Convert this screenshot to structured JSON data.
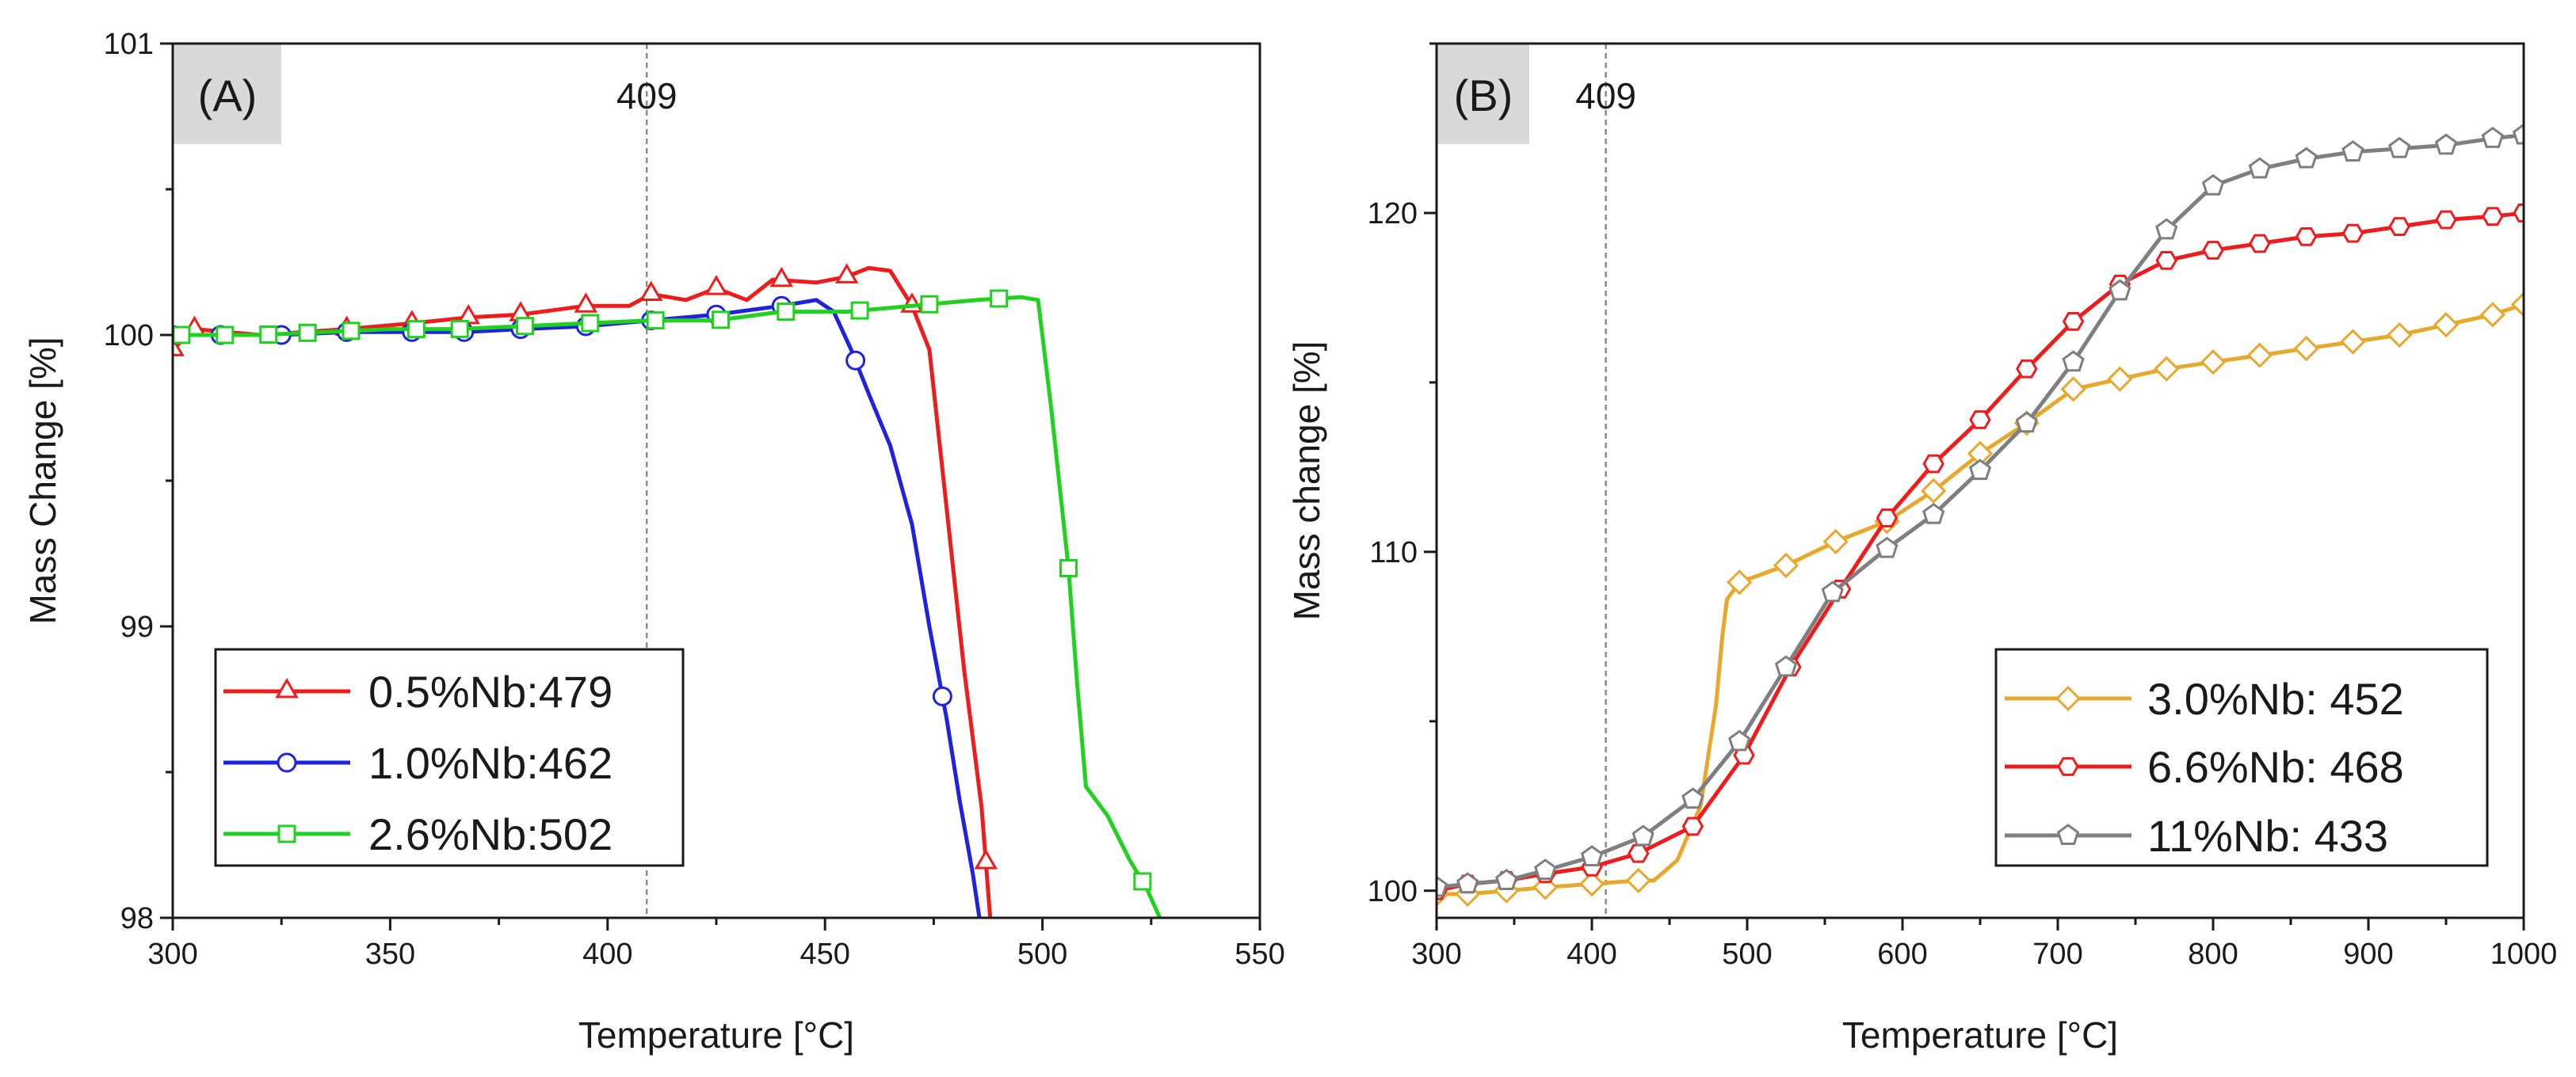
{
  "chart_data": [
    {
      "type": "line",
      "panel_label": "(A)",
      "xlabel": "Temperature [°C]",
      "ylabel": "Mass Change [%]",
      "xlim": [
        300,
        550
      ],
      "ylim": [
        98,
        101
      ],
      "xticks": [
        300,
        350,
        400,
        450,
        500,
        550
      ],
      "yticks": [
        98,
        99,
        100,
        101
      ],
      "grid": false,
      "legend_position": "bottom-left",
      "vline": {
        "x": 409,
        "label": "409"
      },
      "series": [
        {
          "name": "0.5%Nb:479",
          "color": "#ee1c1c",
          "marker": "triangle",
          "points": [
            [
              300,
              99.95
            ],
            [
              305,
              100.02
            ],
            [
              320,
              100.0
            ],
            [
              340,
              100.02
            ],
            [
              355,
              100.04
            ],
            [
              368,
              100.06
            ],
            [
              380,
              100.07
            ],
            [
              395,
              100.1
            ],
            [
              405,
              100.1
            ],
            [
              410,
              100.14
            ],
            [
              418,
              100.12
            ],
            [
              425,
              100.16
            ],
            [
              432,
              100.12
            ],
            [
              438,
              100.19
            ],
            [
              448,
              100.18
            ],
            [
              455,
              100.2
            ],
            [
              460,
              100.23
            ],
            [
              465,
              100.22
            ],
            [
              470,
              100.1
            ],
            [
              474,
              99.95
            ],
            [
              478,
              99.4
            ],
            [
              482,
              98.85
            ],
            [
              486,
              98.38
            ],
            [
              488,
              98.0
            ]
          ],
          "markers_x": [
            300,
            305,
            340,
            355,
            368,
            380,
            395,
            410,
            425,
            440,
            455,
            470,
            487
          ]
        },
        {
          "name": "1.0%Nb:462",
          "color": "#1f22e0",
          "marker": "circle",
          "points": [
            [
              300,
              100.0
            ],
            [
              311,
              100.0
            ],
            [
              325,
              100.0
            ],
            [
              340,
              100.01
            ],
            [
              355,
              100.01
            ],
            [
              367,
              100.01
            ],
            [
              380,
              100.02
            ],
            [
              395,
              100.03
            ],
            [
              410,
              100.05
            ],
            [
              425,
              100.07
            ],
            [
              440,
              100.1
            ],
            [
              448,
              100.12
            ],
            [
              452,
              100.08
            ],
            [
              456,
              99.95
            ],
            [
              460,
              99.8
            ],
            [
              465,
              99.62
            ],
            [
              470,
              99.35
            ],
            [
              474,
              99.0
            ],
            [
              478,
              98.68
            ],
            [
              481,
              98.4
            ],
            [
              484,
              98.15
            ],
            [
              485.5,
              98.0
            ]
          ],
          "markers_x": [
            300,
            311,
            325,
            340,
            355,
            367,
            380,
            395,
            410,
            425,
            440,
            457,
            477
          ]
        },
        {
          "name": "2.6%Nb:502",
          "color": "#1ed21e",
          "marker": "square",
          "points": [
            [
              300,
              100.0
            ],
            [
              310,
              100.0
            ],
            [
              320,
              100.0
            ],
            [
              335,
              100.01
            ],
            [
              350,
              100.02
            ],
            [
              365,
              100.02
            ],
            [
              380,
              100.03
            ],
            [
              395,
              100.04
            ],
            [
              410,
              100.05
            ],
            [
              425,
              100.05
            ],
            [
              440,
              100.08
            ],
            [
              455,
              100.08
            ],
            [
              470,
              100.1
            ],
            [
              485,
              100.12
            ],
            [
              495,
              100.13
            ],
            [
              499,
              100.12
            ],
            [
              502,
              99.75
            ],
            [
              506,
              99.2
            ],
            [
              508,
              98.8
            ],
            [
              510,
              98.45
            ],
            [
              515,
              98.35
            ],
            [
              520,
              98.2
            ],
            [
              524,
              98.1
            ],
            [
              527,
              98.0
            ]
          ],
          "markers_x": [
            302,
            312,
            322,
            331,
            341,
            356,
            366,
            381,
            396,
            411,
            426,
            441,
            458,
            474,
            490,
            506,
            523
          ]
        }
      ]
    },
    {
      "type": "line",
      "panel_label": "(B)",
      "xlabel": "Temperature [°C]",
      "ylabel": "Mass change [%]",
      "xlim": [
        300,
        1000
      ],
      "ylim": [
        99.2,
        125
      ],
      "xticks": [
        300,
        400,
        500,
        600,
        700,
        800,
        900,
        1000
      ],
      "yticks": [
        100,
        110,
        120
      ],
      "grid": false,
      "legend_position": "bottom-right",
      "vline": {
        "x": 409,
        "label": "409"
      },
      "series": [
        {
          "name": "3.0%Nb: 452",
          "color": "#e8a82c",
          "marker": "diamond",
          "points": [
            [
              300,
              99.9
            ],
            [
              320,
              99.9
            ],
            [
              345,
              100.0
            ],
            [
              370,
              100.1
            ],
            [
              400,
              100.2
            ],
            [
              430,
              100.3
            ],
            [
              440,
              100.3
            ],
            [
              455,
              100.9
            ],
            [
              470,
              102.5
            ],
            [
              480,
              105.5
            ],
            [
              484,
              107.5
            ],
            [
              487,
              108.6
            ],
            [
              495,
              109.1
            ],
            [
              525,
              109.6
            ],
            [
              557,
              110.3
            ],
            [
              590,
              110.9
            ],
            [
              620,
              111.8
            ],
            [
              650,
              112.9
            ],
            [
              680,
              113.8
            ],
            [
              710,
              114.8
            ],
            [
              740,
              115.1
            ],
            [
              770,
              115.4
            ],
            [
              800,
              115.6
            ],
            [
              830,
              115.8
            ],
            [
              860,
              116.0
            ],
            [
              890,
              116.2
            ],
            [
              920,
              116.4
            ],
            [
              950,
              116.7
            ],
            [
              980,
              117.0
            ],
            [
              1000,
              117.3
            ]
          ],
          "markers_x": [
            300,
            320,
            345,
            370,
            400,
            430,
            495,
            525,
            557,
            590,
            620,
            650,
            680,
            710,
            740,
            770,
            800,
            830,
            860,
            890,
            920,
            950,
            980,
            1000
          ]
        },
        {
          "name": "6.6%Nb: 468",
          "color": "#ee1c1c",
          "marker": "hexagon",
          "points": [
            [
              300,
              100.0
            ],
            [
              320,
              100.2
            ],
            [
              345,
              100.3
            ],
            [
              370,
              100.5
            ],
            [
              400,
              100.7
            ],
            [
              430,
              101.1
            ],
            [
              465,
              101.9
            ],
            [
              498,
              104.0
            ],
            [
              528,
              106.6
            ],
            [
              560,
              108.9
            ],
            [
              590,
              111.0
            ],
            [
              620,
              112.6
            ],
            [
              650,
              113.9
            ],
            [
              680,
              115.4
            ],
            [
              710,
              116.8
            ],
            [
              740,
              117.9
            ],
            [
              770,
              118.6
            ],
            [
              800,
              118.9
            ],
            [
              830,
              119.1
            ],
            [
              860,
              119.3
            ],
            [
              890,
              119.4
            ],
            [
              920,
              119.6
            ],
            [
              950,
              119.8
            ],
            [
              980,
              119.9
            ],
            [
              1000,
              120.0
            ]
          ],
          "markers_x": [
            300,
            320,
            345,
            370,
            400,
            430,
            465,
            498,
            528,
            560,
            590,
            620,
            650,
            680,
            710,
            740,
            770,
            800,
            830,
            860,
            890,
            920,
            950,
            980,
            1000
          ]
        },
        {
          "name": "11%Nb: 433",
          "color": "#7f7f7f",
          "marker": "pentagon",
          "points": [
            [
              300,
              100.1
            ],
            [
              320,
              100.2
            ],
            [
              345,
              100.3
            ],
            [
              370,
              100.6
            ],
            [
              400,
              101.0
            ],
            [
              433,
              101.6
            ],
            [
              465,
              102.7
            ],
            [
              495,
              104.4
            ],
            [
              525,
              106.6
            ],
            [
              555,
              108.8
            ],
            [
              590,
              110.1
            ],
            [
              620,
              111.1
            ],
            [
              650,
              112.4
            ],
            [
              680,
              113.8
            ],
            [
              710,
              115.6
            ],
            [
              740,
              117.7
            ],
            [
              770,
              119.5
            ],
            [
              800,
              120.8
            ],
            [
              830,
              121.3
            ],
            [
              860,
              121.6
            ],
            [
              890,
              121.8
            ],
            [
              920,
              121.9
            ],
            [
              950,
              122.0
            ],
            [
              980,
              122.2
            ],
            [
              1000,
              122.3
            ]
          ],
          "markers_x": [
            300,
            320,
            345,
            370,
            400,
            433,
            465,
            495,
            525,
            555,
            590,
            620,
            650,
            680,
            710,
            740,
            770,
            800,
            830,
            860,
            890,
            920,
            950,
            980,
            1000
          ]
        }
      ]
    }
  ]
}
